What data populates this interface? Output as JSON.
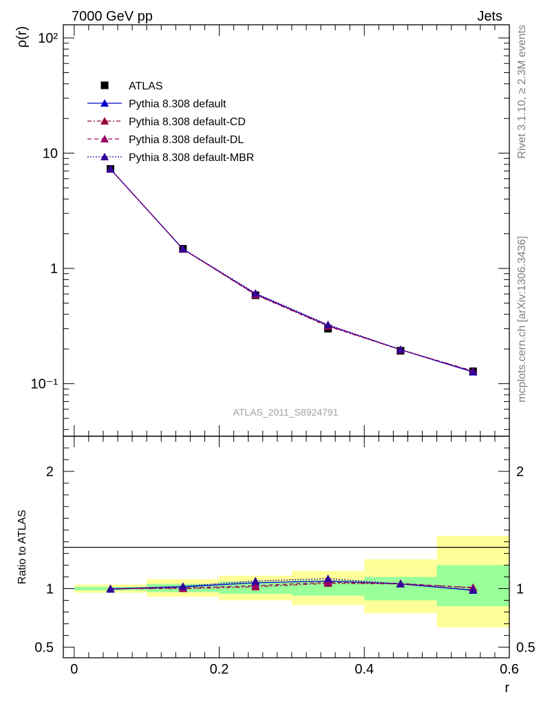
{
  "header": {
    "left": "7000 GeV pp",
    "right": "Jets"
  },
  "side_labels": {
    "rivet": "Rivet 3.1.10, ≥ 2.3M events",
    "mcplots": "mcplots.cern.ch [arXiv:1306.3436]"
  },
  "watermark": "ATLAS_2011_S8924791",
  "chart_data": [
    {
      "type": "line",
      "panel": "main",
      "ylabel": "ρ(r)",
      "yscale": "log",
      "ylim": [
        0.035,
        130
      ],
      "xlim": [
        -0.015,
        0.6
      ],
      "ytick_labels": [
        "10⁻¹",
        "1",
        "10",
        "10²"
      ],
      "x": [
        0.05,
        0.15,
        0.25,
        0.35,
        0.45,
        0.55
      ],
      "data": {
        "name": "ATLAS",
        "values": [
          7.3,
          1.48,
          0.585,
          0.3,
          0.193,
          0.128
        ]
      },
      "series": [
        {
          "name": "Pythia 8.308 default",
          "values": [
            7.25,
            1.47,
            0.6,
            0.32,
            0.197,
            0.126
          ]
        },
        {
          "name": "Pythia 8.308 default-CD",
          "values": [
            7.28,
            1.47,
            0.59,
            0.315,
            0.197,
            0.129
          ]
        },
        {
          "name": "Pythia 8.308 default-DL",
          "values": [
            7.28,
            1.47,
            0.595,
            0.318,
            0.197,
            0.128
          ]
        },
        {
          "name": "Pythia 8.308 default-MBR",
          "values": [
            7.3,
            1.48,
            0.61,
            0.325,
            0.198,
            0.127
          ]
        }
      ],
      "legend": "top-left"
    },
    {
      "type": "line",
      "panel": "ratio",
      "ylabel": "Ratio to ATLAS",
      "xlabel": "r",
      "ylim": [
        0.41,
        2.3
      ],
      "xlim": [
        -0.015,
        0.6
      ],
      "ytick_labels": [
        "0.5",
        "1",
        "2"
      ],
      "xtick_labels": [
        "0",
        "0.2",
        "0.4",
        "0.6"
      ],
      "x": [
        0.05,
        0.15,
        0.25,
        0.35,
        0.45,
        0.55
      ],
      "bins": [
        [
          0.0,
          0.1
        ],
        [
          0.1,
          0.2
        ],
        [
          0.2,
          0.3
        ],
        [
          0.3,
          0.4
        ],
        [
          0.4,
          0.5
        ],
        [
          0.5,
          0.6
        ]
      ],
      "band_stat": [
        [
          0.985,
          1.015
        ],
        [
          0.97,
          1.04
        ],
        [
          0.955,
          1.06
        ],
        [
          0.94,
          1.07
        ],
        [
          0.9,
          1.1
        ],
        [
          0.85,
          1.2
        ]
      ],
      "band_total": [
        [
          0.965,
          1.035
        ],
        [
          0.93,
          1.08
        ],
        [
          0.9,
          1.11
        ],
        [
          0.86,
          1.15
        ],
        [
          0.79,
          1.25
        ],
        [
          0.67,
          1.45
        ]
      ],
      "series": [
        {
          "name": "Pythia 8.308 default",
          "values": [
            0.995,
            1.015,
            1.05,
            1.065,
            1.04,
            0.985
          ]
        },
        {
          "name": "Pythia 8.308 default-CD",
          "values": [
            1.0,
            1.0,
            1.015,
            1.045,
            1.04,
            1.01
          ]
        },
        {
          "name": "Pythia 8.308 default-DL",
          "values": [
            1.0,
            1.005,
            1.025,
            1.055,
            1.045,
            1.005
          ]
        },
        {
          "name": "Pythia 8.308 default-MBR",
          "values": [
            1.0,
            1.02,
            1.065,
            1.085,
            1.04,
            0.99
          ]
        }
      ]
    }
  ],
  "styles": {
    "data_color": "#000000",
    "series_colors": [
      "#0000cc",
      "#990033",
      "#990066",
      "#330099"
    ],
    "series_dash": [
      "",
      "6 3 2 3",
      "6 4",
      "2 2"
    ],
    "band_stat_color": "#99ff99",
    "band_total_color": "#ffff99"
  }
}
